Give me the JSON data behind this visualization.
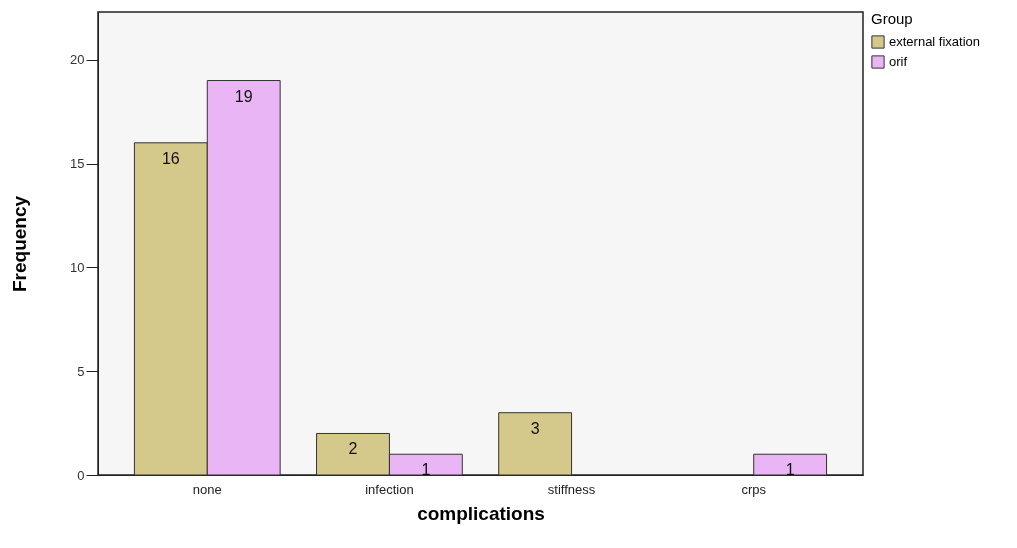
{
  "chart_data": {
    "type": "bar",
    "xlabel": "complications",
    "ylabel": "Frequency",
    "legend_title": "Group",
    "categories": [
      "none",
      "infection",
      "stiffness",
      "crps"
    ],
    "series": [
      {
        "name": "external fixation",
        "color": "#d4c98a",
        "values": [
          16,
          2,
          3,
          null
        ]
      },
      {
        "name": "orif",
        "color": "#e9b5f5",
        "values": [
          19,
          1,
          null,
          1
        ]
      }
    ],
    "ylim": [
      0,
      22.3
    ],
    "yticks": [
      0,
      5,
      10,
      15,
      20
    ],
    "grid": false,
    "legend": "top right",
    "data_labels": true
  }
}
